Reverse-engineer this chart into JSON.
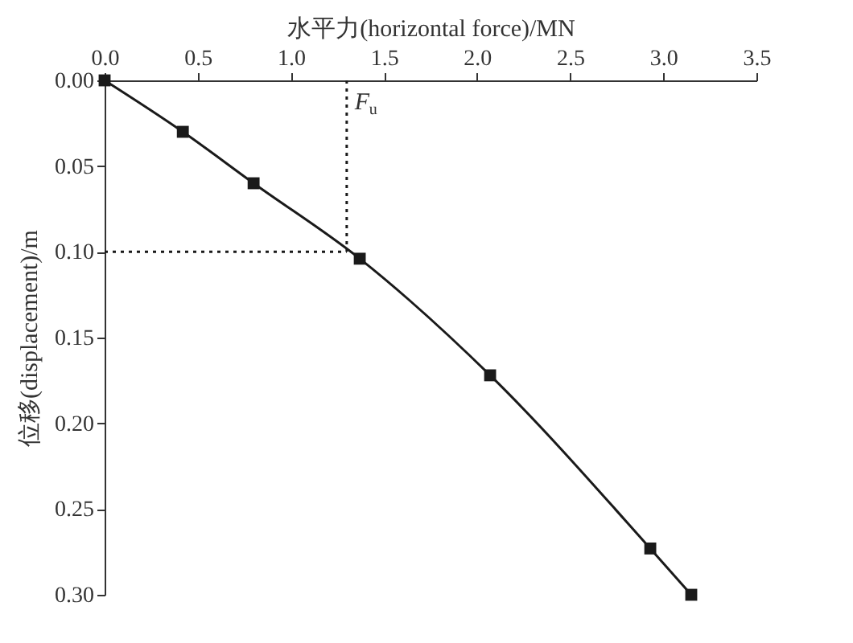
{
  "chart_data": {
    "type": "line",
    "xlabel": "水平力(horizontal force)/MN",
    "ylabel": "位移(displacement)/m",
    "x": [
      0,
      0.42,
      0.8,
      1.37,
      2.07,
      2.93,
      3.15
    ],
    "series": [
      {
        "color": "#1a1a1a",
        "values": [
          0,
          0.03,
          0.06,
          0.104,
          0.172,
          0.273,
          0.3
        ]
      }
    ],
    "marker": "square",
    "line_style": "solid",
    "grid": false,
    "xlim": [
      0,
      3.5
    ],
    "xticks": [
      {
        "value": 0,
        "label": "0.0"
      },
      {
        "value": 0.5,
        "label": "0.5"
      },
      {
        "value": 1,
        "label": "1.0"
      },
      {
        "value": 1.5,
        "label": "1.5"
      },
      {
        "value": 2,
        "label": "2.0"
      },
      {
        "value": 2.5,
        "label": "2.5"
      },
      {
        "value": 3,
        "label": "3.0"
      },
      {
        "value": 3.5,
        "label": "3.5"
      }
    ],
    "ylim": [
      0.3,
      0
    ],
    "yticks": [
      {
        "value": 0,
        "label": "0.00"
      },
      {
        "value": 0.05,
        "label": "0.05"
      },
      {
        "value": 0.1,
        "label": "0.10"
      },
      {
        "value": 0.15,
        "label": "0.15"
      },
      {
        "value": 0.2,
        "label": "0.20"
      },
      {
        "value": 0.25,
        "label": "0.25"
      },
      {
        "value": 0.3,
        "label": "0.30"
      }
    ],
    "ref_lines": [
      {
        "axis": "x",
        "value": 1.3,
        "line_style": "dotted",
        "color": "#1a1a1a"
      },
      {
        "axis": "y",
        "value": 0.1,
        "line_style": "dotted",
        "color": "#1a1a1a"
      }
    ],
    "annotations": [
      {
        "text": "F$_{u}$",
        "x": 1.3,
        "y": 0.012
      }
    ]
  }
}
